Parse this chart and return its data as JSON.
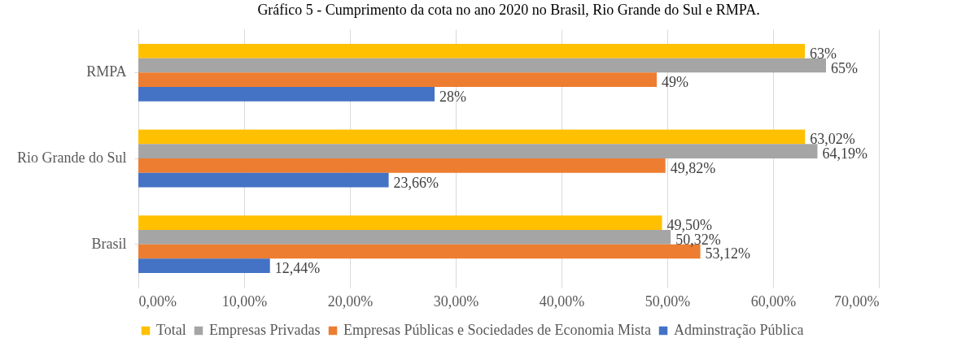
{
  "chart_data": {
    "type": "bar",
    "orientation": "horizontal",
    "title": "Gráfico 5 - Cumprimento da cota no ano 2020 no Brasil, Rio Grande do Sul e RMPA.",
    "categories": [
      "RMPA",
      "Rio Grande do Sul",
      "Brasil"
    ],
    "series": [
      {
        "name": "Total",
        "color": "#ffc000",
        "values": [
          63,
          63.02,
          49.5
        ],
        "value_labels": [
          "63%",
          "63,02%",
          "49,50%"
        ]
      },
      {
        "name": "Empresas Privadas",
        "color": "#a5a5a5",
        "values": [
          65,
          64.19,
          50.32
        ],
        "value_labels": [
          "65%",
          "64,19%",
          "50,32%"
        ]
      },
      {
        "name": "Empresas Públicas e Sociedades de Economia Mista",
        "color": "#ed7d31",
        "values": [
          49,
          49.82,
          53.12
        ],
        "value_labels": [
          "49%",
          "49,82%",
          "53,12%"
        ]
      },
      {
        "name": "Adminstração Pública",
        "color": "#4472c4",
        "values": [
          28,
          23.66,
          12.44
        ],
        "value_labels": [
          "28%",
          "23,66%",
          "12,44%"
        ]
      }
    ],
    "xlim": [
      0,
      70
    ],
    "xticks": [
      {
        "value": 0,
        "label": "0,00%"
      },
      {
        "value": 10,
        "label": "10,00%"
      },
      {
        "value": 20,
        "label": "20,00%"
      },
      {
        "value": 30,
        "label": "30,00%"
      },
      {
        "value": 40,
        "label": "40,00%"
      },
      {
        "value": 50,
        "label": "50,00%"
      },
      {
        "value": 60,
        "label": "60,00%"
      },
      {
        "value": 70,
        "label": "70,00%"
      }
    ],
    "grid": "x",
    "legend": "bottom"
  }
}
